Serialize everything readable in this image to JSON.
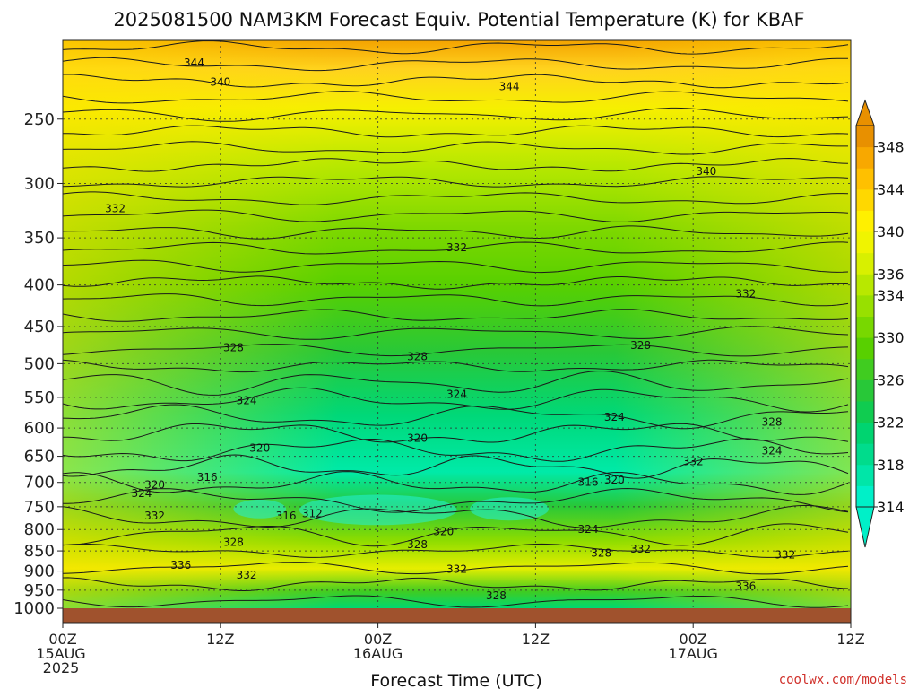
{
  "chart_data": {
    "type": "heatmap",
    "title": "2025081500 NAM3KM Forecast Equiv. Potential Temperature (K) for KBAF",
    "xlabel": "Forecast Time (UTC)",
    "ylabel": "",
    "y_scale": "log-pressure",
    "y_range": [
      1000,
      200
    ],
    "y_ticks": [
      250,
      300,
      350,
      400,
      450,
      500,
      550,
      600,
      650,
      700,
      750,
      800,
      850,
      900,
      950,
      1000
    ],
    "x_range_hours": [
      0,
      60
    ],
    "x_ticks": [
      {
        "hour": 0,
        "lines": [
          "00Z",
          "15AUG",
          "2025"
        ]
      },
      {
        "hour": 12,
        "lines": [
          "12Z"
        ]
      },
      {
        "hour": 24,
        "lines": [
          "00Z",
          "16AUG"
        ]
      },
      {
        "hour": 36,
        "lines": [
          "12Z"
        ]
      },
      {
        "hour": 48,
        "lines": [
          "00Z",
          "17AUG"
        ]
      },
      {
        "hour": 60,
        "lines": [
          "12Z"
        ]
      }
    ],
    "colorbar": {
      "levels": [
        314,
        316,
        318,
        320,
        322,
        324,
        326,
        328,
        330,
        332,
        334,
        336,
        338,
        340,
        342,
        344,
        346,
        348,
        350
      ],
      "tick_labels": [
        314,
        318,
        322,
        326,
        330,
        334,
        336,
        340,
        344,
        348
      ],
      "colors": [
        "#00f0c8",
        "#00e6a8",
        "#00dc8c",
        "#00d470",
        "#10cc50",
        "#28c838",
        "#40cc20",
        "#58d000",
        "#78d800",
        "#98e000",
        "#b8e800",
        "#d8f000",
        "#f0f400",
        "#fff000",
        "#ffd800",
        "#ffc000",
        "#f8a800",
        "#e89000"
      ]
    },
    "contour_labels": [
      {
        "value": "344",
        "hour": 10,
        "p": 213
      },
      {
        "value": "340",
        "hour": 12,
        "p": 225
      },
      {
        "value": "344",
        "hour": 34,
        "p": 228
      },
      {
        "value": "340",
        "hour": 49,
        "p": 290
      },
      {
        "value": "332",
        "hour": 4,
        "p": 322
      },
      {
        "value": "332",
        "hour": 30,
        "p": 360
      },
      {
        "value": "332",
        "hour": 52,
        "p": 410
      },
      {
        "value": "328",
        "hour": 13,
        "p": 478
      },
      {
        "value": "328",
        "hour": 27,
        "p": 490
      },
      {
        "value": "328",
        "hour": 44,
        "p": 475
      },
      {
        "value": "324",
        "hour": 14,
        "p": 555
      },
      {
        "value": "324",
        "hour": 30,
        "p": 545
      },
      {
        "value": "324",
        "hour": 42,
        "p": 582
      },
      {
        "value": "328",
        "hour": 54,
        "p": 590
      },
      {
        "value": "320",
        "hour": 15,
        "p": 635
      },
      {
        "value": "320",
        "hour": 27,
        "p": 618
      },
      {
        "value": "324",
        "hour": 54,
        "p": 640
      },
      {
        "value": "332",
        "hour": 48,
        "p": 660
      },
      {
        "value": "316",
        "hour": 11,
        "p": 690
      },
      {
        "value": "320",
        "hour": 7,
        "p": 705
      },
      {
        "value": "324",
        "hour": 6,
        "p": 722
      },
      {
        "value": "316",
        "hour": 40,
        "p": 700
      },
      {
        "value": "320",
        "hour": 42,
        "p": 695
      },
      {
        "value": "332",
        "hour": 7,
        "p": 770
      },
      {
        "value": "316",
        "hour": 17,
        "p": 770
      },
      {
        "value": "312",
        "hour": 19,
        "p": 765
      },
      {
        "value": "324",
        "hour": 40,
        "p": 800
      },
      {
        "value": "328",
        "hour": 13,
        "p": 830
      },
      {
        "value": "328",
        "hour": 27,
        "p": 835
      },
      {
        "value": "320",
        "hour": 29,
        "p": 805
      },
      {
        "value": "328",
        "hour": 41,
        "p": 855
      },
      {
        "value": "332",
        "hour": 44,
        "p": 845
      },
      {
        "value": "332",
        "hour": 55,
        "p": 860
      },
      {
        "value": "336",
        "hour": 9,
        "p": 885
      },
      {
        "value": "332",
        "hour": 14,
        "p": 910
      },
      {
        "value": "332",
        "hour": 30,
        "p": 895
      },
      {
        "value": "328",
        "hour": 33,
        "p": 965
      },
      {
        "value": "336",
        "hour": 52,
        "p": 940
      }
    ],
    "grid": true,
    "legend": "colorbar-right"
  },
  "credit": "coolwx.com/models"
}
